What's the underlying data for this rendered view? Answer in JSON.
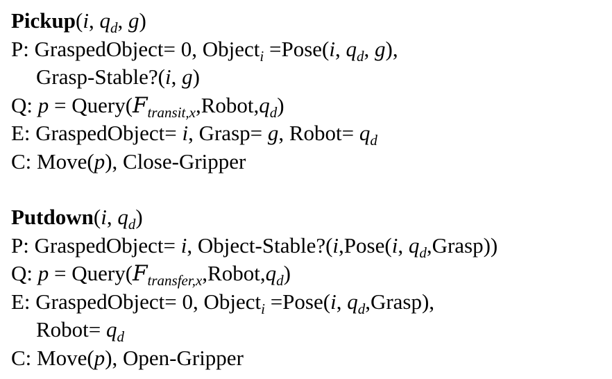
{
  "pickup": {
    "name": "Pickup",
    "params": "(i, q_d, g)",
    "P": {
      "lead": "P: GraspedObject= 0, Object",
      "obj_sub": "i",
      "eq_pose": " =Pose",
      "args": "(i, q_d, g),",
      "cont": "Grasp-Stable?",
      "cont_args": "(i, g)"
    },
    "Q": {
      "lead": "Q: ",
      "var": "p",
      "eq": " = Query(",
      "space": "F",
      "space_sub": "transit,x",
      "tail": ",Robot,",
      "q": "q",
      "q_sub": "d",
      "close": ")"
    },
    "E": {
      "lead": "E: GraspedObject= ",
      "i": "i",
      "mid1": ", Grasp= ",
      "g": "g",
      "mid2": ", Robot= ",
      "q": "q",
      "q_sub": "d"
    },
    "C": {
      "lead": "C: Move(",
      "var": "p",
      "tail": "), Close-Gripper"
    }
  },
  "putdown": {
    "name": "Putdown",
    "params": "(i, q_d)",
    "P": {
      "lead": "P: GraspedObject= ",
      "i": "i",
      "mid": ", Object-Stable?(",
      "i2": "i",
      "pose": ",Pose(",
      "i3": "i",
      "comma": ", ",
      "q": "q",
      "q_sub": "d",
      "tail": ",Grasp))"
    },
    "Q": {
      "lead": "Q: ",
      "var": "p",
      "eq": " = Query(",
      "space": "F",
      "space_sub": "transfer,x",
      "tail": ",Robot,",
      "q": "q",
      "q_sub": "d",
      "close": ")"
    },
    "E": {
      "lead": "E: GraspedObject= 0, Object",
      "obj_sub": "i",
      "eq_pose": " =Pose(",
      "i": "i",
      "comma": ", ",
      "q": "q",
      "q_sub": "d",
      "tail": ",Grasp),",
      "cont": "Robot= ",
      "cont_q": "q",
      "cont_q_sub": "d"
    },
    "C": {
      "lead": "C: Move(",
      "var": "p",
      "tail": "), Open-Gripper"
    }
  }
}
